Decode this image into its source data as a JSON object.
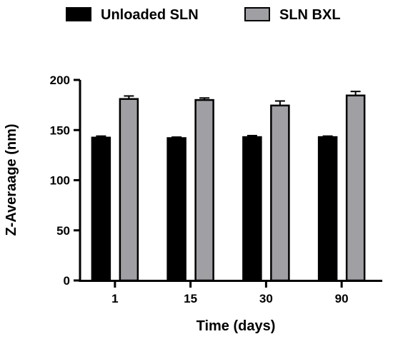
{
  "chart_data": {
    "type": "bar",
    "title": "",
    "xlabel": "Time (days)",
    "ylabel": "Z-Averaage (nm)",
    "categories": [
      "1",
      "15",
      "30",
      "90"
    ],
    "ylim": [
      0,
      200
    ],
    "yticks": [
      0,
      50,
      100,
      150,
      200
    ],
    "legend_position": "top",
    "series": [
      {
        "name": "Unloaded SLN",
        "color": "#000000",
        "values": [
          142.5,
          142.0,
          143.0,
          143.0
        ],
        "errors": [
          1.5,
          1.0,
          1.5,
          1.0
        ]
      },
      {
        "name": "SLN BXL",
        "color": "#a0a0a4",
        "values": [
          181,
          180,
          174.5,
          184.5
        ],
        "errors": [
          3,
          2,
          4.5,
          4
        ]
      }
    ]
  }
}
